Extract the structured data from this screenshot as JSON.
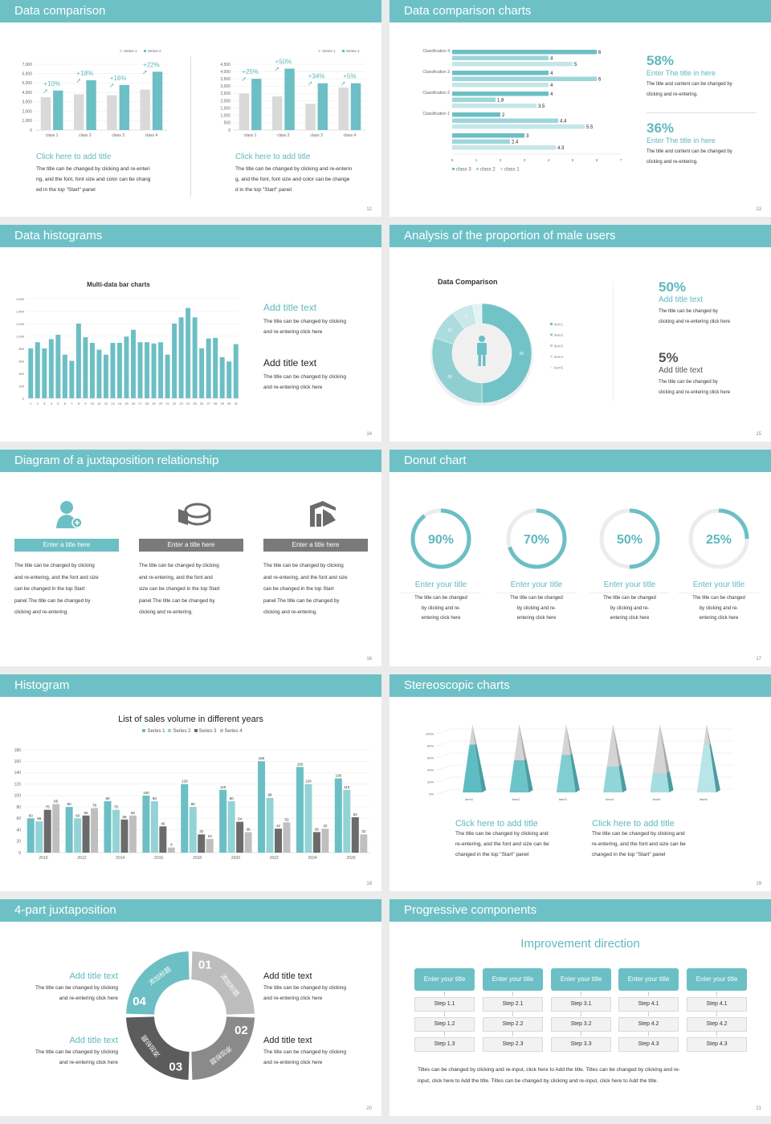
{
  "colors": {
    "teal": "#6cbfc4",
    "teal_light": "#93d3d6",
    "gray_light": "#d9d9d9",
    "gray_dark": "#6b6b6b",
    "gray_mid": "#bfbfbf"
  },
  "slides": [
    {
      "title": "Data comparison",
      "page": "12",
      "blocks": [
        {
          "title": "Click here to add title",
          "lines": [
            "The title can be changed by clicking and re-enteri",
            "ng, and the font, font size and color can be chang",
            "ed in the top \"Start\" panel"
          ]
        },
        {
          "title": "Click here to add title",
          "lines": [
            "The title can be changed by clicking and re-enterin",
            "g, and the font, font size and color can be change",
            "d in the top \"Start\" panel"
          ]
        }
      ]
    },
    {
      "title": "Data comparison charts",
      "page": "13",
      "stats": [
        {
          "value": "58%",
          "title": "Enter The title in here",
          "lines": [
            "The title and content can be changed by",
            "clicking and re-entering."
          ]
        },
        {
          "value": "36%",
          "title": "Enter The title in here",
          "lines": [
            "The title and content can be changed by",
            "clicking and re-entering."
          ]
        }
      ]
    },
    {
      "title": "Data histograms",
      "page": "14",
      "blocks": [
        {
          "title": "Add title text",
          "lines": [
            "The title can be changed by clicking",
            "and re-entering click here"
          ]
        },
        {
          "title": "Add title text",
          "lines": [
            "The title can be changed by clicking",
            "and re-entering click here"
          ]
        }
      ]
    },
    {
      "title": "Analysis of the proportion of male users",
      "page": "15",
      "stats": [
        {
          "value": "50%",
          "title": "Add title text",
          "lines": [
            "The title can be changed by",
            "clicking and re-entering click here"
          ]
        },
        {
          "value": "5%",
          "title": "Add title text",
          "lines": [
            "The title can be changed by",
            "clicking and re-entering click here"
          ]
        }
      ]
    },
    {
      "title": "Diagram of a juxtaposition relationship",
      "page": "16",
      "items": [
        {
          "icon": "user-add-icon",
          "title": "Enter a title here",
          "lines": [
            "The title can be changed by clicking",
            "and re-entering, and the font and size",
            "can be changed in the top Start",
            "panel.The title can be changed by",
            "clicking and re-entering."
          ]
        },
        {
          "icon": "pie-chart-3d-icon",
          "title": "Enter a title here",
          "lines": [
            "The title can be changed by clicking",
            "and re-entering, and the font and",
            "size can be changed in the top Start",
            "panel.The title can be changed by",
            "clicking and re-entering."
          ]
        },
        {
          "icon": "building-chart-icon",
          "title": "Enter a title here",
          "lines": [
            "The title can be changed by clicking",
            "and re-entering, and the font and size",
            "can be changed in the top Start",
            "panel.The title can be changed by",
            "clicking and re-entering."
          ]
        }
      ]
    },
    {
      "title": "Donut chart",
      "page": "17",
      "items": [
        {
          "percent": 90,
          "label": "90%",
          "title": "Enter your title",
          "lines": [
            "The title can be changed",
            "by clicking and re-",
            "entering click here"
          ]
        },
        {
          "percent": 70,
          "label": "70%",
          "title": "Enter your title",
          "lines": [
            "The title can be changed",
            "by clicking and re-",
            "entering click here"
          ]
        },
        {
          "percent": 50,
          "label": "50%",
          "title": "Enter your title",
          "lines": [
            "The title can be changed",
            "by clicking and re-",
            "entering click here"
          ]
        },
        {
          "percent": 25,
          "label": "25%",
          "title": "Enter your title",
          "lines": [
            "The title can be changed",
            "by clicking and re-",
            "entering click here"
          ]
        }
      ]
    },
    {
      "title": "Histogram",
      "page": "18"
    },
    {
      "title": "Stereoscopic charts",
      "page": "19",
      "blocks": [
        {
          "title": "Click here to add title",
          "lines": [
            "The title can be changed by clicking and",
            "re-entering, and the font and size can be",
            "changed in the top \"Start\" panel"
          ]
        },
        {
          "title": "Click here to add title",
          "lines": [
            "The title can be changed by clicking and",
            "re-entering, and the font and size can be",
            "changed in the top \"Start\" panel"
          ]
        }
      ]
    },
    {
      "title": "4-part juxtaposition",
      "page": "20",
      "segments": [
        {
          "num": "01",
          "label": "添加标题"
        },
        {
          "num": "02",
          "label": "添加标题"
        },
        {
          "num": "03",
          "label": "添加标题"
        },
        {
          "num": "04",
          "label": "添加标题"
        }
      ],
      "blocks": [
        {
          "title": "Add title text",
          "lines": [
            "The title can be changed by clicking",
            "and re-entering click here"
          ]
        },
        {
          "title": "Add title text",
          "lines": [
            "The title can be changed by clicking",
            "and re-entering click here"
          ]
        },
        {
          "title": "Add title text",
          "lines": [
            "The title can be changed by clicking",
            "and re-entering click here"
          ]
        },
        {
          "title": "Add title text",
          "lines": [
            "The title can be changed by clicking",
            "and re-entering click here"
          ]
        }
      ]
    },
    {
      "title": "Progressive components",
      "page": "21",
      "heading": "Improvement direction",
      "columns": [
        {
          "title": "Enter your title",
          "steps": [
            "Step 1.1",
            "Step 1.2",
            "Step 1.3"
          ]
        },
        {
          "title": "Enter your title",
          "steps": [
            "Step 2.1",
            "Step 2.2",
            "Step 2.3"
          ]
        },
        {
          "title": "Enter your title",
          "steps": [
            "Step 3.1",
            "Step 3.2",
            "Step 3.3"
          ]
        },
        {
          "title": "Enter your title",
          "steps": [
            "Step 4.1",
            "Step 4.2",
            "Step 4.3"
          ]
        },
        {
          "title": "Enter your title",
          "steps": [
            "Step 4.1",
            "Step 4.2",
            "Step 4.3"
          ]
        }
      ],
      "footer_lines": [
        "Titles can be changed by clicking and re-input, click here to Add the title. Titles can be changed by clicking and re-",
        "input, click here to Add the title. Titles can be changed by clicking and re-input, click here to Add the title."
      ]
    }
  ],
  "chart_data": [
    {
      "type": "bar",
      "id": "c12a",
      "categories": [
        "class 1",
        "class 2",
        "class 3",
        "class 4"
      ],
      "series": [
        {
          "name": "Series 1",
          "values": [
            3500,
            3800,
            3700,
            4300
          ]
        },
        {
          "name": "Series 2",
          "values": [
            4200,
            5300,
            4800,
            6200
          ]
        }
      ],
      "annotations": [
        "+10%",
        "+18%",
        "+16%",
        "+22%"
      ],
      "ylim": [
        0,
        7000
      ],
      "ytick_step": 1000,
      "legend": "top-right",
      "grid": true
    },
    {
      "type": "bar",
      "id": "c12b",
      "categories": [
        "class 1",
        "class 2",
        "class 3",
        "class 4"
      ],
      "series": [
        {
          "name": "Series 1",
          "values": [
            2500,
            2300,
            1800,
            2900
          ]
        },
        {
          "name": "Series 2",
          "values": [
            3500,
            4200,
            3200,
            3200
          ]
        }
      ],
      "annotations": [
        "+25%",
        "+50%",
        "+34%",
        "+5%"
      ],
      "ylim": [
        0,
        4500
      ],
      "ytick_step": 500,
      "legend": "top-right",
      "grid": true
    },
    {
      "type": "bar",
      "orientation": "horizontal",
      "id": "c13",
      "categories": [
        "Classification 4",
        "Classification 3",
        "Classification 2",
        "Classification 1",
        ""
      ],
      "series": [
        {
          "name": "class 3",
          "values": [
            6,
            4,
            4,
            2,
            3
          ]
        },
        {
          "name": "class 2",
          "values": [
            4,
            6,
            1.8,
            4.4,
            2.4
          ]
        },
        {
          "name": "class 1",
          "values": [
            5,
            4,
            3.5,
            5.5,
            4.3
          ]
        }
      ],
      "xlim": [
        0,
        7
      ],
      "xtick_step": 1,
      "legend": "bottom"
    },
    {
      "type": "bar",
      "id": "c14",
      "title": "Multi-data bar charts",
      "categories": [
        "1",
        "2",
        "3",
        "4",
        "5",
        "6",
        "7",
        "8",
        "9",
        "10",
        "11",
        "12",
        "13",
        "14",
        "15",
        "16",
        "17",
        "18",
        "19",
        "20",
        "21",
        "22",
        "23",
        "24",
        "25",
        "26",
        "27",
        "28",
        "29",
        "30",
        "31"
      ],
      "values": [
        800,
        900,
        800,
        950,
        1020,
        700,
        600,
        1200,
        980,
        890,
        780,
        700,
        890,
        890,
        990,
        1100,
        900,
        900,
        880,
        900,
        700,
        1200,
        1300,
        1450,
        1300,
        800,
        960,
        970,
        660,
        590,
        870
      ],
      "ylim": [
        0,
        1600
      ],
      "ytick_step": 200,
      "grid": true
    },
    {
      "type": "pie",
      "id": "c15",
      "title": "Data Comparison",
      "donut": true,
      "categories": [
        "item1",
        "item2",
        "item3",
        "item4",
        "item5"
      ],
      "values": [
        50,
        30,
        10,
        7,
        3
      ],
      "legend": "right"
    },
    {
      "type": "bar",
      "id": "c18",
      "title": "List of sales volume in different years",
      "categories": [
        "2010",
        "2012",
        "2014",
        "2016",
        "2018",
        "2020",
        "2022",
        "2024",
        "2026"
      ],
      "series": [
        {
          "name": "Series 1",
          "values": [
            60,
            80,
            90,
            100,
            120,
            110,
            160,
            150,
            130
          ]
        },
        {
          "name": "Series 2",
          "values": [
            55,
            60,
            75,
            90,
            80,
            90,
            96,
            120,
            110
          ]
        },
        {
          "name": "Series 3",
          "values": [
            75,
            65,
            58,
            46,
            32,
            54,
            42,
            36,
            62
          ]
        },
        {
          "name": "Series 4",
          "values": [
            85,
            78,
            65,
            9,
            24,
            36,
            53,
            42,
            32
          ]
        }
      ],
      "ylim": [
        0,
        180
      ],
      "ytick_step": 20,
      "legend": "top",
      "grid": true
    },
    {
      "type": "bar",
      "subtype": "3d-pyramid",
      "id": "c19",
      "categories": [
        "item1",
        "item2",
        "item3",
        "item4",
        "item5",
        "item6"
      ],
      "values": [
        70,
        47,
        55,
        38,
        28,
        70
      ],
      "ylim": [
        0,
        100
      ],
      "ytick_step": 20,
      "unit": "%",
      "grid": true
    }
  ]
}
